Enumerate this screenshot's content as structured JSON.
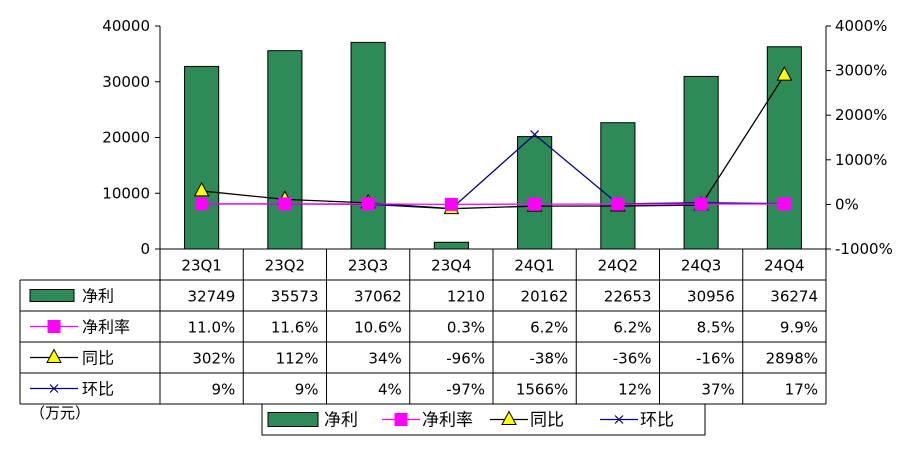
{
  "chart_data": {
    "type": "bar",
    "title": "",
    "unit_label": "（万元）",
    "categories": [
      "23Q1",
      "23Q2",
      "23Q3",
      "23Q4",
      "24Q1",
      "24Q2",
      "24Q3",
      "24Q4"
    ],
    "left_axis": {
      "ylim": [
        0,
        40000
      ],
      "ticks": [
        0,
        10000,
        20000,
        30000,
        40000
      ],
      "tick_labels": [
        "0",
        "10000",
        "20000",
        "30000",
        "40000"
      ]
    },
    "right_axis": {
      "ylim": [
        -1000,
        4000
      ],
      "ticks": [
        -1000,
        0,
        1000,
        2000,
        3000,
        4000
      ],
      "tick_labels": [
        "-1000%",
        "0%",
        "1000%",
        "2000%",
        "3000%",
        "4000%"
      ]
    },
    "grid": false,
    "legend_position": "bottom",
    "series": [
      {
        "name": "净利",
        "type": "bar",
        "axis": "left",
        "color": "#2E8B57",
        "values": [
          32749,
          35573,
          37062,
          1210,
          20162,
          22653,
          30956,
          36274
        ],
        "table_values": [
          "32749",
          "35573",
          "37062",
          "1210",
          "20162",
          "22653",
          "30956",
          "36274"
        ]
      },
      {
        "name": "净利率",
        "type": "line",
        "marker": "square",
        "axis": "right",
        "color": "#FF00FF",
        "values": [
          11.0,
          11.6,
          10.6,
          0.3,
          6.2,
          6.2,
          8.5,
          9.9
        ],
        "table_values": [
          "11.0%",
          "11.6%",
          "10.6%",
          "0.3%",
          "6.2%",
          "6.2%",
          "8.5%",
          "9.9%"
        ]
      },
      {
        "name": "同比",
        "type": "line",
        "marker": "triangle",
        "axis": "right",
        "color": "#000000",
        "marker_fill": "#FFFF00",
        "values": [
          302,
          112,
          34,
          -96,
          -38,
          -36,
          -16,
          2898
        ],
        "table_values": [
          "302%",
          "112%",
          "34%",
          "-96%",
          "-38%",
          "-36%",
          "-16%",
          "2898%"
        ]
      },
      {
        "name": "环比",
        "type": "line",
        "marker": "x",
        "axis": "right",
        "color": "#000080",
        "values": [
          9,
          9,
          4,
          -97,
          1566,
          12,
          37,
          17
        ],
        "table_values": [
          "9%",
          "9%",
          "4%",
          "-97%",
          "1566%",
          "12%",
          "37%",
          "17%"
        ]
      }
    ]
  }
}
